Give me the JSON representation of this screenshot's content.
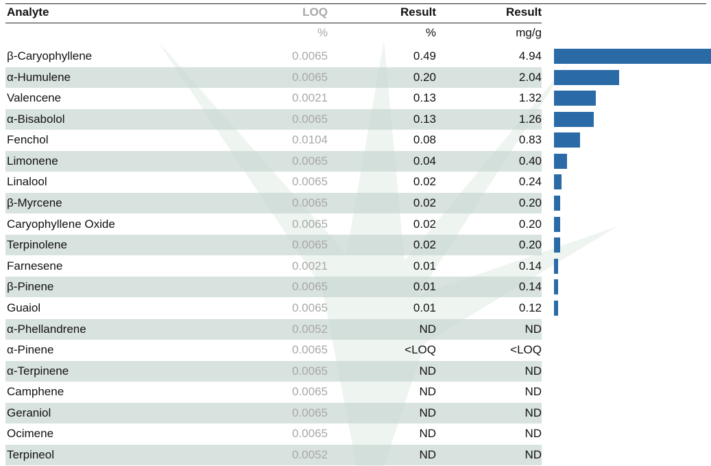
{
  "table": {
    "header": [
      "Analyte",
      "LOQ",
      "Result",
      "Result"
    ],
    "units": [
      "%",
      "%",
      "mg/g"
    ],
    "rows": [
      [
        "β-Caryophyllene",
        "0.0065",
        "0.49",
        "4.94"
      ],
      [
        "α-Humulene",
        "0.0065",
        "0.20",
        "2.04"
      ],
      [
        "Valencene",
        "0.0021",
        "0.13",
        "1.32"
      ],
      [
        "α-Bisabolol",
        "0.0065",
        "0.13",
        "1.26"
      ],
      [
        "Fenchol",
        "0.0104",
        "0.08",
        "0.83"
      ],
      [
        "Limonene",
        "0.0065",
        "0.04",
        "0.40"
      ],
      [
        "Linalool",
        "0.0065",
        "0.02",
        "0.24"
      ],
      [
        "β-Myrcene",
        "0.0065",
        "0.02",
        "0.20"
      ],
      [
        "Caryophyllene Oxide",
        "0.0065",
        "0.02",
        "0.20"
      ],
      [
        "Terpinolene",
        "0.0065",
        "0.02",
        "0.20"
      ],
      [
        "Farnesene",
        "0.0021",
        "0.01",
        "0.14"
      ],
      [
        "β-Pinene",
        "0.0065",
        "0.01",
        "0.14"
      ],
      [
        "Guaiol",
        "0.0065",
        "0.01",
        "0.12"
      ],
      [
        "α-Phellandrene",
        "0.0052",
        "ND",
        "ND"
      ],
      [
        "α-Pinene",
        "0.0065",
        "<LOQ",
        "<LOQ"
      ],
      [
        "α-Terpinene",
        "0.0065",
        "ND",
        "ND"
      ],
      [
        "Camphene",
        "0.0065",
        "ND",
        "ND"
      ],
      [
        "Geraniol",
        "0.0065",
        "ND",
        "ND"
      ],
      [
        "Ocimene",
        "0.0065",
        "ND",
        "ND"
      ],
      [
        "Terpineol",
        "0.0052",
        "ND",
        "ND"
      ]
    ]
  }
}
